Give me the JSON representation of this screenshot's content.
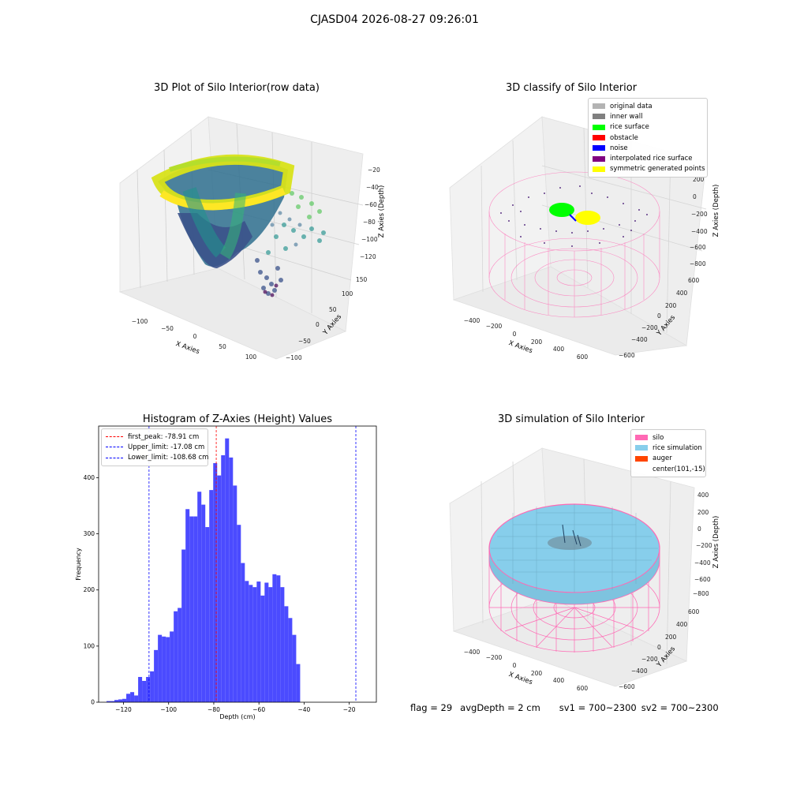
{
  "suptitle": "CJASD04 2026-08-27 09:26:01",
  "footer": {
    "flag": "flag = 29",
    "avg_depth": "avgDepth = 2 cm",
    "sv1": "sv1 = 700~2300",
    "sv2": "sv2 = 700~2300"
  },
  "panels": {
    "raw": {
      "title": "3D Plot of Silo Interior(row data)",
      "x_label": "X Axies",
      "y_label": "Y Axies",
      "z_label": "Z Axies (Depth)",
      "x_ticks": [
        "−100",
        "−50",
        "0",
        "50",
        "100"
      ],
      "y_ticks": [
        "−100",
        "−50",
        "0",
        "50",
        "100",
        "150"
      ],
      "z_ticks": [
        "−20",
        "−40",
        "−60",
        "−80",
        "−100",
        "−120"
      ]
    },
    "classify": {
      "title": "3D classify of Silo Interior",
      "x_label": "X Axies",
      "y_label": "Y Axies",
      "z_label": "Z Axies (Depth)",
      "x_ticks": [
        "−400",
        "−200",
        "0",
        "200",
        "400",
        "600"
      ],
      "y_ticks": [
        "−600",
        "−400",
        "−200",
        "0",
        "200",
        "400",
        "600"
      ],
      "z_ticks": [
        "200",
        "0",
        "−200",
        "−400",
        "−600",
        "−800"
      ],
      "legend": [
        {
          "label": "original data",
          "color": "#b3b3b3"
        },
        {
          "label": "inner wall",
          "color": "#808080"
        },
        {
          "label": "rice surface",
          "color": "#00ff00"
        },
        {
          "label": "obstacle",
          "color": "#ff0000"
        },
        {
          "label": "noise",
          "color": "#0000ff"
        },
        {
          "label": "interpolated rice surface",
          "color": "#800080"
        },
        {
          "label": "symmetric generated points",
          "color": "#ffff00"
        }
      ]
    },
    "simulation": {
      "title": "3D simulation of Silo Interior",
      "x_label": "X Axies",
      "y_label": "Y Axies",
      "z_label": "Z Axies (Depth)",
      "x_ticks": [
        "−400",
        "−200",
        "0",
        "200",
        "400",
        "600"
      ],
      "y_ticks": [
        "−600",
        "−400",
        "−200",
        "0",
        "200",
        "400",
        "600"
      ],
      "z_ticks": [
        "400",
        "200",
        "0",
        "−200",
        "−400",
        "−600",
        "−800"
      ],
      "legend": [
        {
          "label": "silo",
          "color": "#ff69b4"
        },
        {
          "label": "rice simulation",
          "color": "#87ceeb"
        },
        {
          "label": "auger",
          "color": "#ff4500"
        },
        {
          "label": "center(101,-15)",
          "color": ""
        }
      ]
    }
  },
  "chart_data": {
    "type": "bar",
    "title": "Histogram of Z-Axies (Height) Values",
    "xlabel": "Depth (cm)",
    "ylabel": "Frequency",
    "xlim": [
      -131,
      -8
    ],
    "ylim": [
      0,
      492
    ],
    "x_ticks": [
      -120,
      -100,
      -80,
      -60,
      -40,
      -20
    ],
    "y_ticks": [
      0,
      100,
      200,
      300,
      400
    ],
    "bar_color": "#4b4bff",
    "bin_start": -127.5,
    "bin_width": 1.75,
    "values": [
      2,
      2,
      4,
      5,
      6,
      15,
      18,
      12,
      45,
      38,
      45,
      55,
      93,
      120,
      117,
      116,
      126,
      162,
      168,
      272,
      344,
      331,
      331,
      375,
      352,
      312,
      378,
      426,
      404,
      440,
      470,
      436,
      386,
      316,
      248,
      216,
      209,
      205,
      215,
      190,
      213,
      205,
      228,
      226,
      205,
      171,
      150,
      120,
      68
    ],
    "lines": [
      {
        "label": "first_peak: -78.91 cm",
        "x": -78.91,
        "color": "#ff0000"
      },
      {
        "label": "Upper_limit: -17.08 cm",
        "x": -17.08,
        "color": "#0000ff"
      },
      {
        "label": "Lower_limit: -108.68 cm",
        "x": -108.68,
        "color": "#0000ff"
      }
    ],
    "legend_position": "upper-left"
  }
}
